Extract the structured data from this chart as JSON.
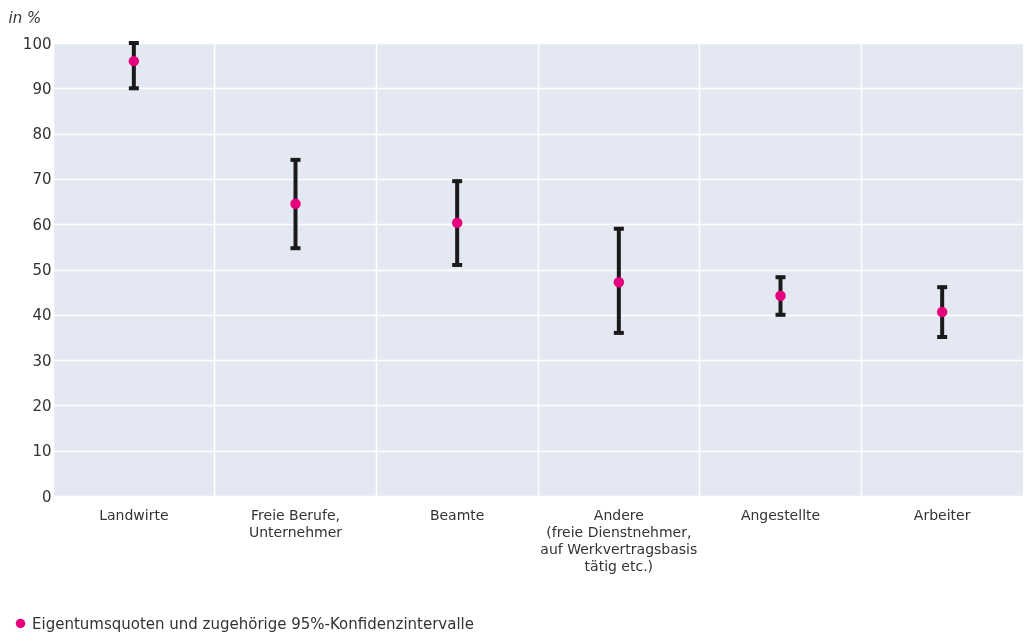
{
  "chart_data": {
    "type": "scatter",
    "ylabel": "in %",
    "categories": [
      "Landwirte",
      "Freie Berufe,\nUnternehmer",
      "Beamte",
      "Andere\n(freie Dienstnehmer,\nauf Werkvertragsbasis\ntätig etc.)",
      "Angestellte",
      "Arbeiter"
    ],
    "series": [
      {
        "name": "Eigentumsquoten und zugehörige 95%-Konfidenzintervalle",
        "color": "#e6007e",
        "values": [
          96,
          64.5,
          60.3,
          47.2,
          44.2,
          40.6
        ],
        "errors": [
          [
            90,
            100
          ],
          [
            54.7,
            74.2
          ],
          [
            51,
            69.5
          ],
          [
            36,
            59
          ],
          [
            40,
            48.3
          ],
          [
            35.1,
            46.1
          ]
        ]
      }
    ],
    "ylim": [
      0,
      100
    ],
    "yticks": [
      0,
      10,
      20,
      30,
      40,
      50,
      60,
      70,
      80,
      90,
      100
    ],
    "grid": true,
    "legend": "bottom left",
    "marker": "circle"
  }
}
